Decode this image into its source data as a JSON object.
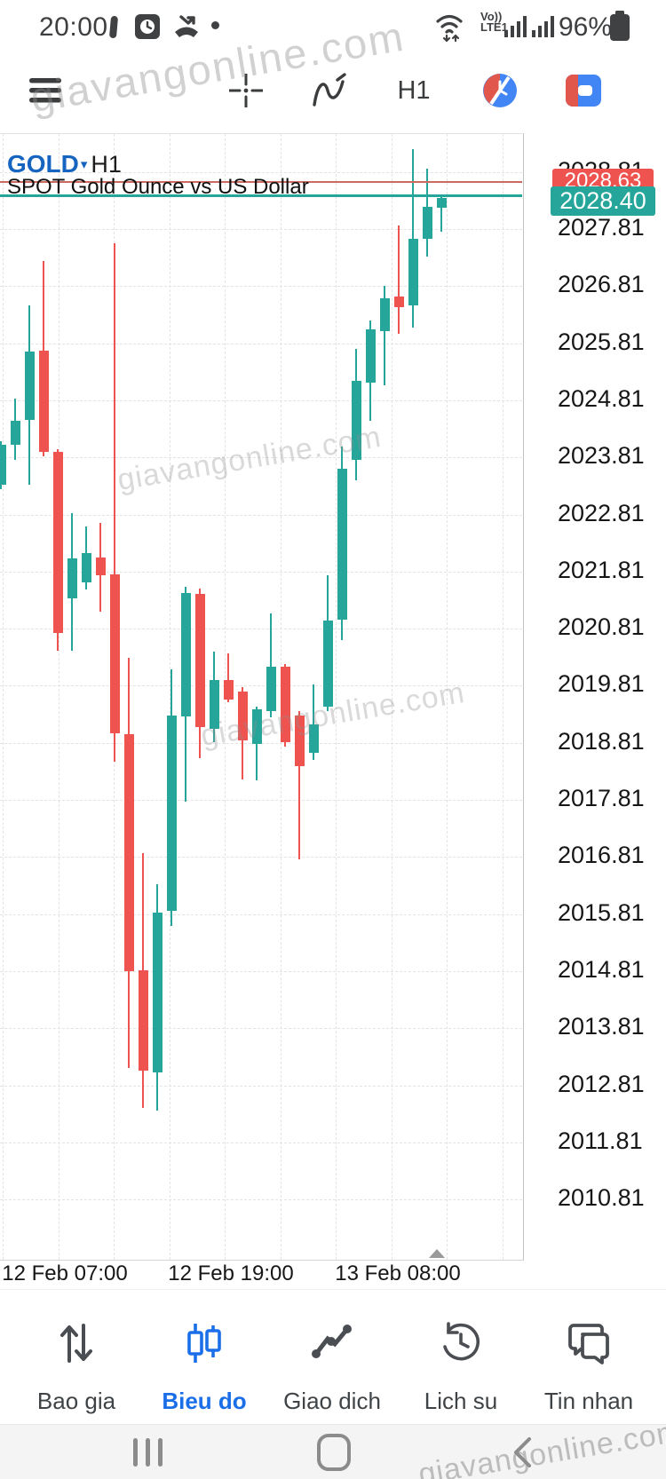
{
  "app": {
    "watermark": "giavangonline.com"
  },
  "status_bar": {
    "time": "20:00",
    "volte_top": "Vo))",
    "volte_bottom": "LTE1",
    "battery_percent": "96%"
  },
  "toolbar": {
    "timeframe_label": "H1"
  },
  "chart": {
    "symbol": "GOLD",
    "timeframe": "H1",
    "description": "SPOT Gold Ounce vs US Dollar",
    "ask_label": "2028.63",
    "bid_label": "2028.40",
    "colors": {
      "up": "#26a69a",
      "down": "#ef5350",
      "ask_line": "#cb6a60",
      "bid_line": "#26a69a",
      "ask_badge": "#ef5350",
      "bid_badge": "#26a69a",
      "symbol_text": "#1565c0"
    }
  },
  "chart_data": {
    "type": "candlestick",
    "symbol": "GOLD",
    "timeframe": "H1",
    "title": "GOLD H1",
    "subtitle": "SPOT Gold Ounce vs US Dollar",
    "bid": 2028.4,
    "ask": 2028.63,
    "ylim": [
      2009.7,
      2029.5
    ],
    "grid": true,
    "y_ticks": [
      2028.81,
      2027.81,
      2026.81,
      2025.81,
      2024.81,
      2023.81,
      2022.81,
      2021.81,
      2020.81,
      2019.81,
      2018.81,
      2017.81,
      2016.81,
      2015.81,
      2014.81,
      2013.81,
      2012.81,
      2011.81,
      2010.81
    ],
    "x_ticks": [
      {
        "label": "12 Feb 07:00",
        "x": 73
      },
      {
        "label": "12 Feb 19:00",
        "x": 260
      },
      {
        "label": "13 Feb 08:00",
        "x": 448
      }
    ],
    "candles": [
      {
        "o": 2023.33,
        "h": 2024.1,
        "l": 2023.25,
        "c": 2024.03
      },
      {
        "o": 2024.03,
        "h": 2024.84,
        "l": 2023.77,
        "c": 2024.45
      },
      {
        "o": 2024.47,
        "h": 2026.47,
        "l": 2023.33,
        "c": 2025.66
      },
      {
        "o": 2025.68,
        "h": 2027.25,
        "l": 2023.83,
        "c": 2023.91
      },
      {
        "o": 2023.91,
        "h": 2023.95,
        "l": 2020.42,
        "c": 2020.73
      },
      {
        "o": 2021.34,
        "h": 2022.83,
        "l": 2020.42,
        "c": 2022.04
      },
      {
        "o": 2021.62,
        "h": 2022.6,
        "l": 2021.5,
        "c": 2022.13
      },
      {
        "o": 2022.06,
        "h": 2022.66,
        "l": 2021.11,
        "c": 2021.75
      },
      {
        "o": 2021.76,
        "h": 2027.56,
        "l": 2018.48,
        "c": 2018.98
      },
      {
        "o": 2018.96,
        "h": 2020.3,
        "l": 2013.11,
        "c": 2014.81
      },
      {
        "o": 2014.82,
        "h": 2016.88,
        "l": 2012.42,
        "c": 2013.07
      },
      {
        "o": 2013.04,
        "h": 2016.33,
        "l": 2012.37,
        "c": 2015.84
      },
      {
        "o": 2015.87,
        "h": 2020.1,
        "l": 2015.6,
        "c": 2019.29
      },
      {
        "o": 2019.27,
        "h": 2021.54,
        "l": 2017.78,
        "c": 2021.43
      },
      {
        "o": 2021.42,
        "h": 2021.51,
        "l": 2018.54,
        "c": 2019.09
      },
      {
        "o": 2019.05,
        "h": 2020.41,
        "l": 2018.82,
        "c": 2019.91
      },
      {
        "o": 2019.91,
        "h": 2020.38,
        "l": 2019.52,
        "c": 2019.57
      },
      {
        "o": 2019.71,
        "h": 2019.79,
        "l": 2018.17,
        "c": 2018.85
      },
      {
        "o": 2018.79,
        "h": 2019.45,
        "l": 2018.15,
        "c": 2019.4
      },
      {
        "o": 2019.37,
        "h": 2021.08,
        "l": 2019.26,
        "c": 2020.14
      },
      {
        "o": 2020.14,
        "h": 2020.19,
        "l": 2018.74,
        "c": 2018.82
      },
      {
        "o": 2019.29,
        "h": 2019.37,
        "l": 2016.77,
        "c": 2018.4
      },
      {
        "o": 2018.64,
        "h": 2019.83,
        "l": 2018.51,
        "c": 2019.13
      },
      {
        "o": 2019.44,
        "h": 2021.74,
        "l": 2019.37,
        "c": 2020.95
      },
      {
        "o": 2020.96,
        "h": 2024.0,
        "l": 2020.61,
        "c": 2023.61
      },
      {
        "o": 2023.77,
        "h": 2025.71,
        "l": 2023.41,
        "c": 2025.15
      },
      {
        "o": 2025.12,
        "h": 2026.21,
        "l": 2024.45,
        "c": 2026.05
      },
      {
        "o": 2026.02,
        "h": 2026.81,
        "l": 2025.08,
        "c": 2026.6
      },
      {
        "o": 2026.63,
        "h": 2027.87,
        "l": 2025.97,
        "c": 2026.44
      },
      {
        "o": 2026.47,
        "h": 2029.21,
        "l": 2026.08,
        "c": 2027.64
      },
      {
        "o": 2027.64,
        "h": 2028.87,
        "l": 2027.33,
        "c": 2028.2
      },
      {
        "o": 2028.18,
        "h": 2028.42,
        "l": 2027.76,
        "c": 2028.35
      }
    ]
  },
  "bottom_nav": {
    "active_color": "#1a6fe8",
    "inactive_color": "#4a4d52",
    "items": [
      {
        "label": "Bao gia",
        "icon": "quotes-arrows-icon",
        "active": false
      },
      {
        "label": "Bieu do",
        "icon": "chart-candles-icon",
        "active": true
      },
      {
        "label": "Giao dich",
        "icon": "trade-line-icon",
        "active": false
      },
      {
        "label": "Lich su",
        "icon": "history-clock-icon",
        "active": false
      },
      {
        "label": "Tin nhan",
        "icon": "messages-icon",
        "active": false
      }
    ]
  },
  "system_nav": {
    "icons": [
      "recents-icon",
      "home-icon",
      "back-icon"
    ]
  }
}
